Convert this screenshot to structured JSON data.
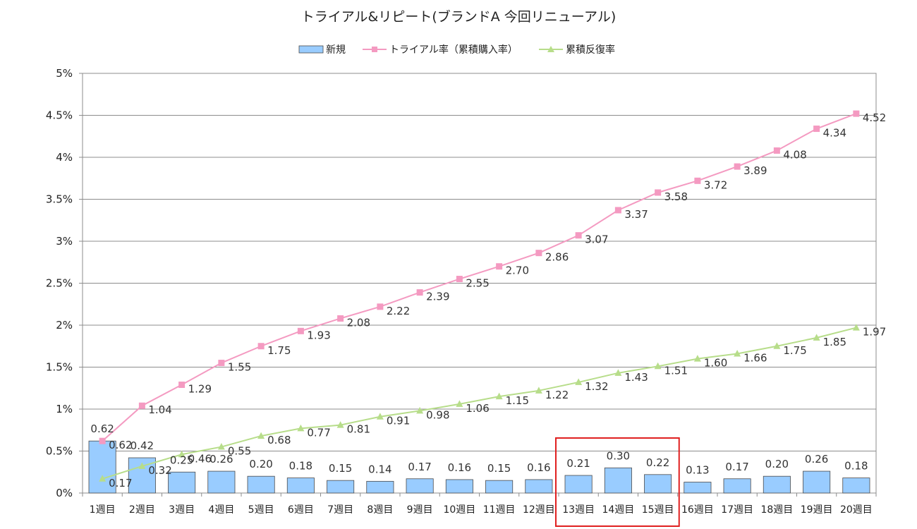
{
  "chart_data": {
    "type": "bar+line",
    "title": "トライアル&リピート(ブランドA 今回リニューアル)",
    "legend": {
      "placement": "top-center",
      "items": [
        "新規",
        "トライアル率（累積購入率）",
        "累積反復率"
      ]
    },
    "categories": [
      "1週目",
      "2週目",
      "3週目",
      "4週目",
      "5週目",
      "6週目",
      "7週目",
      "8週目",
      "9週目",
      "10週目",
      "11週目",
      "12週目",
      "13週目",
      "14週目",
      "15週目",
      "16週目",
      "17週目",
      "18週目",
      "19週目",
      "20週目"
    ],
    "y_axis": {
      "min": 0,
      "max": 5,
      "ticks": [
        0,
        0.5,
        1,
        1.5,
        2,
        2.5,
        3,
        3.5,
        4,
        4.5,
        5
      ],
      "tick_labels": [
        "0%",
        "0.5%",
        "1%",
        "1.5%",
        "2%",
        "2.5%",
        "3%",
        "3.5%",
        "4%",
        "4.5%",
        "5%"
      ],
      "grid": true
    },
    "series": [
      {
        "name": "新規",
        "kind": "bar",
        "color": "#99ccff",
        "edge_color": "#4a4a4a",
        "values": [
          0.62,
          0.42,
          0.25,
          0.26,
          0.2,
          0.18,
          0.15,
          0.14,
          0.17,
          0.16,
          0.15,
          0.16,
          0.21,
          0.3,
          0.22,
          0.13,
          0.17,
          0.2,
          0.26,
          0.18
        ],
        "labels": [
          "0.62",
          "0.42",
          "0.25",
          "0.26",
          "0.20",
          "0.18",
          "0.15",
          "0.14",
          "0.17",
          "0.16",
          "0.15",
          "0.16",
          "0.21",
          "0.30",
          "0.22",
          "0.13",
          "0.17",
          "0.20",
          "0.26",
          "0.18"
        ]
      },
      {
        "name": "トライアル率（累積購入率）",
        "kind": "line",
        "marker": "square",
        "color": "#f49ac1",
        "values": [
          0.62,
          1.04,
          1.29,
          1.55,
          1.75,
          1.93,
          2.08,
          2.22,
          2.39,
          2.55,
          2.7,
          2.86,
          3.07,
          3.37,
          3.58,
          3.72,
          3.89,
          4.08,
          4.34,
          4.52
        ],
        "labels": [
          "0.62",
          "1.04",
          "1.29",
          "1.55",
          "1.75",
          "1.93",
          "2.08",
          "2.22",
          "2.39",
          "2.55",
          "2.70",
          "2.86",
          "3.07",
          "3.37",
          "3.58",
          "3.72",
          "3.89",
          "4.08",
          "4.34",
          "4.52"
        ]
      },
      {
        "name": "累積反復率",
        "kind": "line",
        "marker": "triangle",
        "color": "#b7dd8a",
        "values": [
          0.17,
          0.32,
          0.46,
          0.55,
          0.68,
          0.77,
          0.81,
          0.91,
          0.98,
          1.06,
          1.15,
          1.22,
          1.32,
          1.43,
          1.51,
          1.6,
          1.66,
          1.75,
          1.85,
          1.97
        ],
        "labels": [
          "0.17",
          "0.32",
          "0.46",
          "0.55",
          "0.68",
          "0.77",
          "0.81",
          "0.91",
          "0.98",
          "1.06",
          "1.15",
          "1.22",
          "1.32",
          "1.43",
          "1.51",
          "1.60",
          "1.66",
          "1.75",
          "1.85",
          "1.97"
        ]
      }
    ],
    "annotations": [
      {
        "type": "highlight-box",
        "color": "#e02020",
        "categories": [
          "13週目",
          "14週目",
          "15週目"
        ]
      }
    ]
  }
}
